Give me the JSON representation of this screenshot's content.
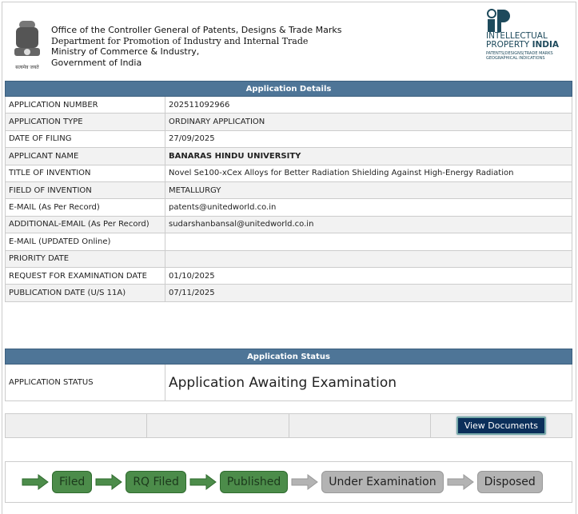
{
  "header": {
    "lines": [
      "Office of the Controller General of Patents, Designs & Trade Marks",
      "Department for Promotion of Industry and Internal Trade",
      "Ministry of Commerce & Industry,",
      "Government of India"
    ],
    "emblem_motto": "सत्यमेव जयते",
    "logo": {
      "line1": "INTELLECTUAL",
      "line2a": "PROPERTY ",
      "line2b": "INDIA",
      "line3": "PATENTS|DESIGNS|TRADE MARKS",
      "line4": "GEOGRAPHICAL INDICATIONS"
    }
  },
  "details": {
    "title": "Application Details",
    "rows": [
      [
        "APPLICATION NUMBER",
        "202511092966"
      ],
      [
        "APPLICATION TYPE",
        "ORDINARY APPLICATION"
      ],
      [
        "DATE OF FILING",
        "27/09/2025"
      ],
      [
        "APPLICANT NAME",
        "BANARAS HINDU UNIVERSITY"
      ],
      [
        "TITLE OF INVENTION",
        "Novel Se100-xCex Alloys for Better Radiation Shielding Against High-Energy Radiation"
      ],
      [
        "FIELD OF INVENTION",
        "METALLURGY"
      ],
      [
        "E-MAIL (As Per Record)",
        "patents@unitedworld.co.in"
      ],
      [
        "ADDITIONAL-EMAIL (As Per Record)",
        "sudarshanbansal@unitedworld.co.in"
      ],
      [
        "E-MAIL (UPDATED Online)",
        ""
      ],
      [
        "PRIORITY DATE",
        ""
      ],
      [
        "REQUEST FOR EXAMINATION DATE",
        "01/10/2025"
      ],
      [
        "PUBLICATION DATE (U/S 11A)",
        "07/11/2025"
      ]
    ]
  },
  "status": {
    "title": "Application Status",
    "label": "APPLICATION STATUS",
    "value": "Application Awaiting Examination"
  },
  "view_documents": "View Documents",
  "progress": [
    {
      "label": "Filed",
      "done": true
    },
    {
      "label": "RQ Filed",
      "done": true
    },
    {
      "label": "Published",
      "done": true
    },
    {
      "label": "Under Examination",
      "done": false
    },
    {
      "label": "Disposed",
      "done": false
    }
  ],
  "colors": {
    "header": "#4e7597",
    "done": "#4c8c4a",
    "todo": "#b3b3b3",
    "button": "#0b2f5a"
  }
}
